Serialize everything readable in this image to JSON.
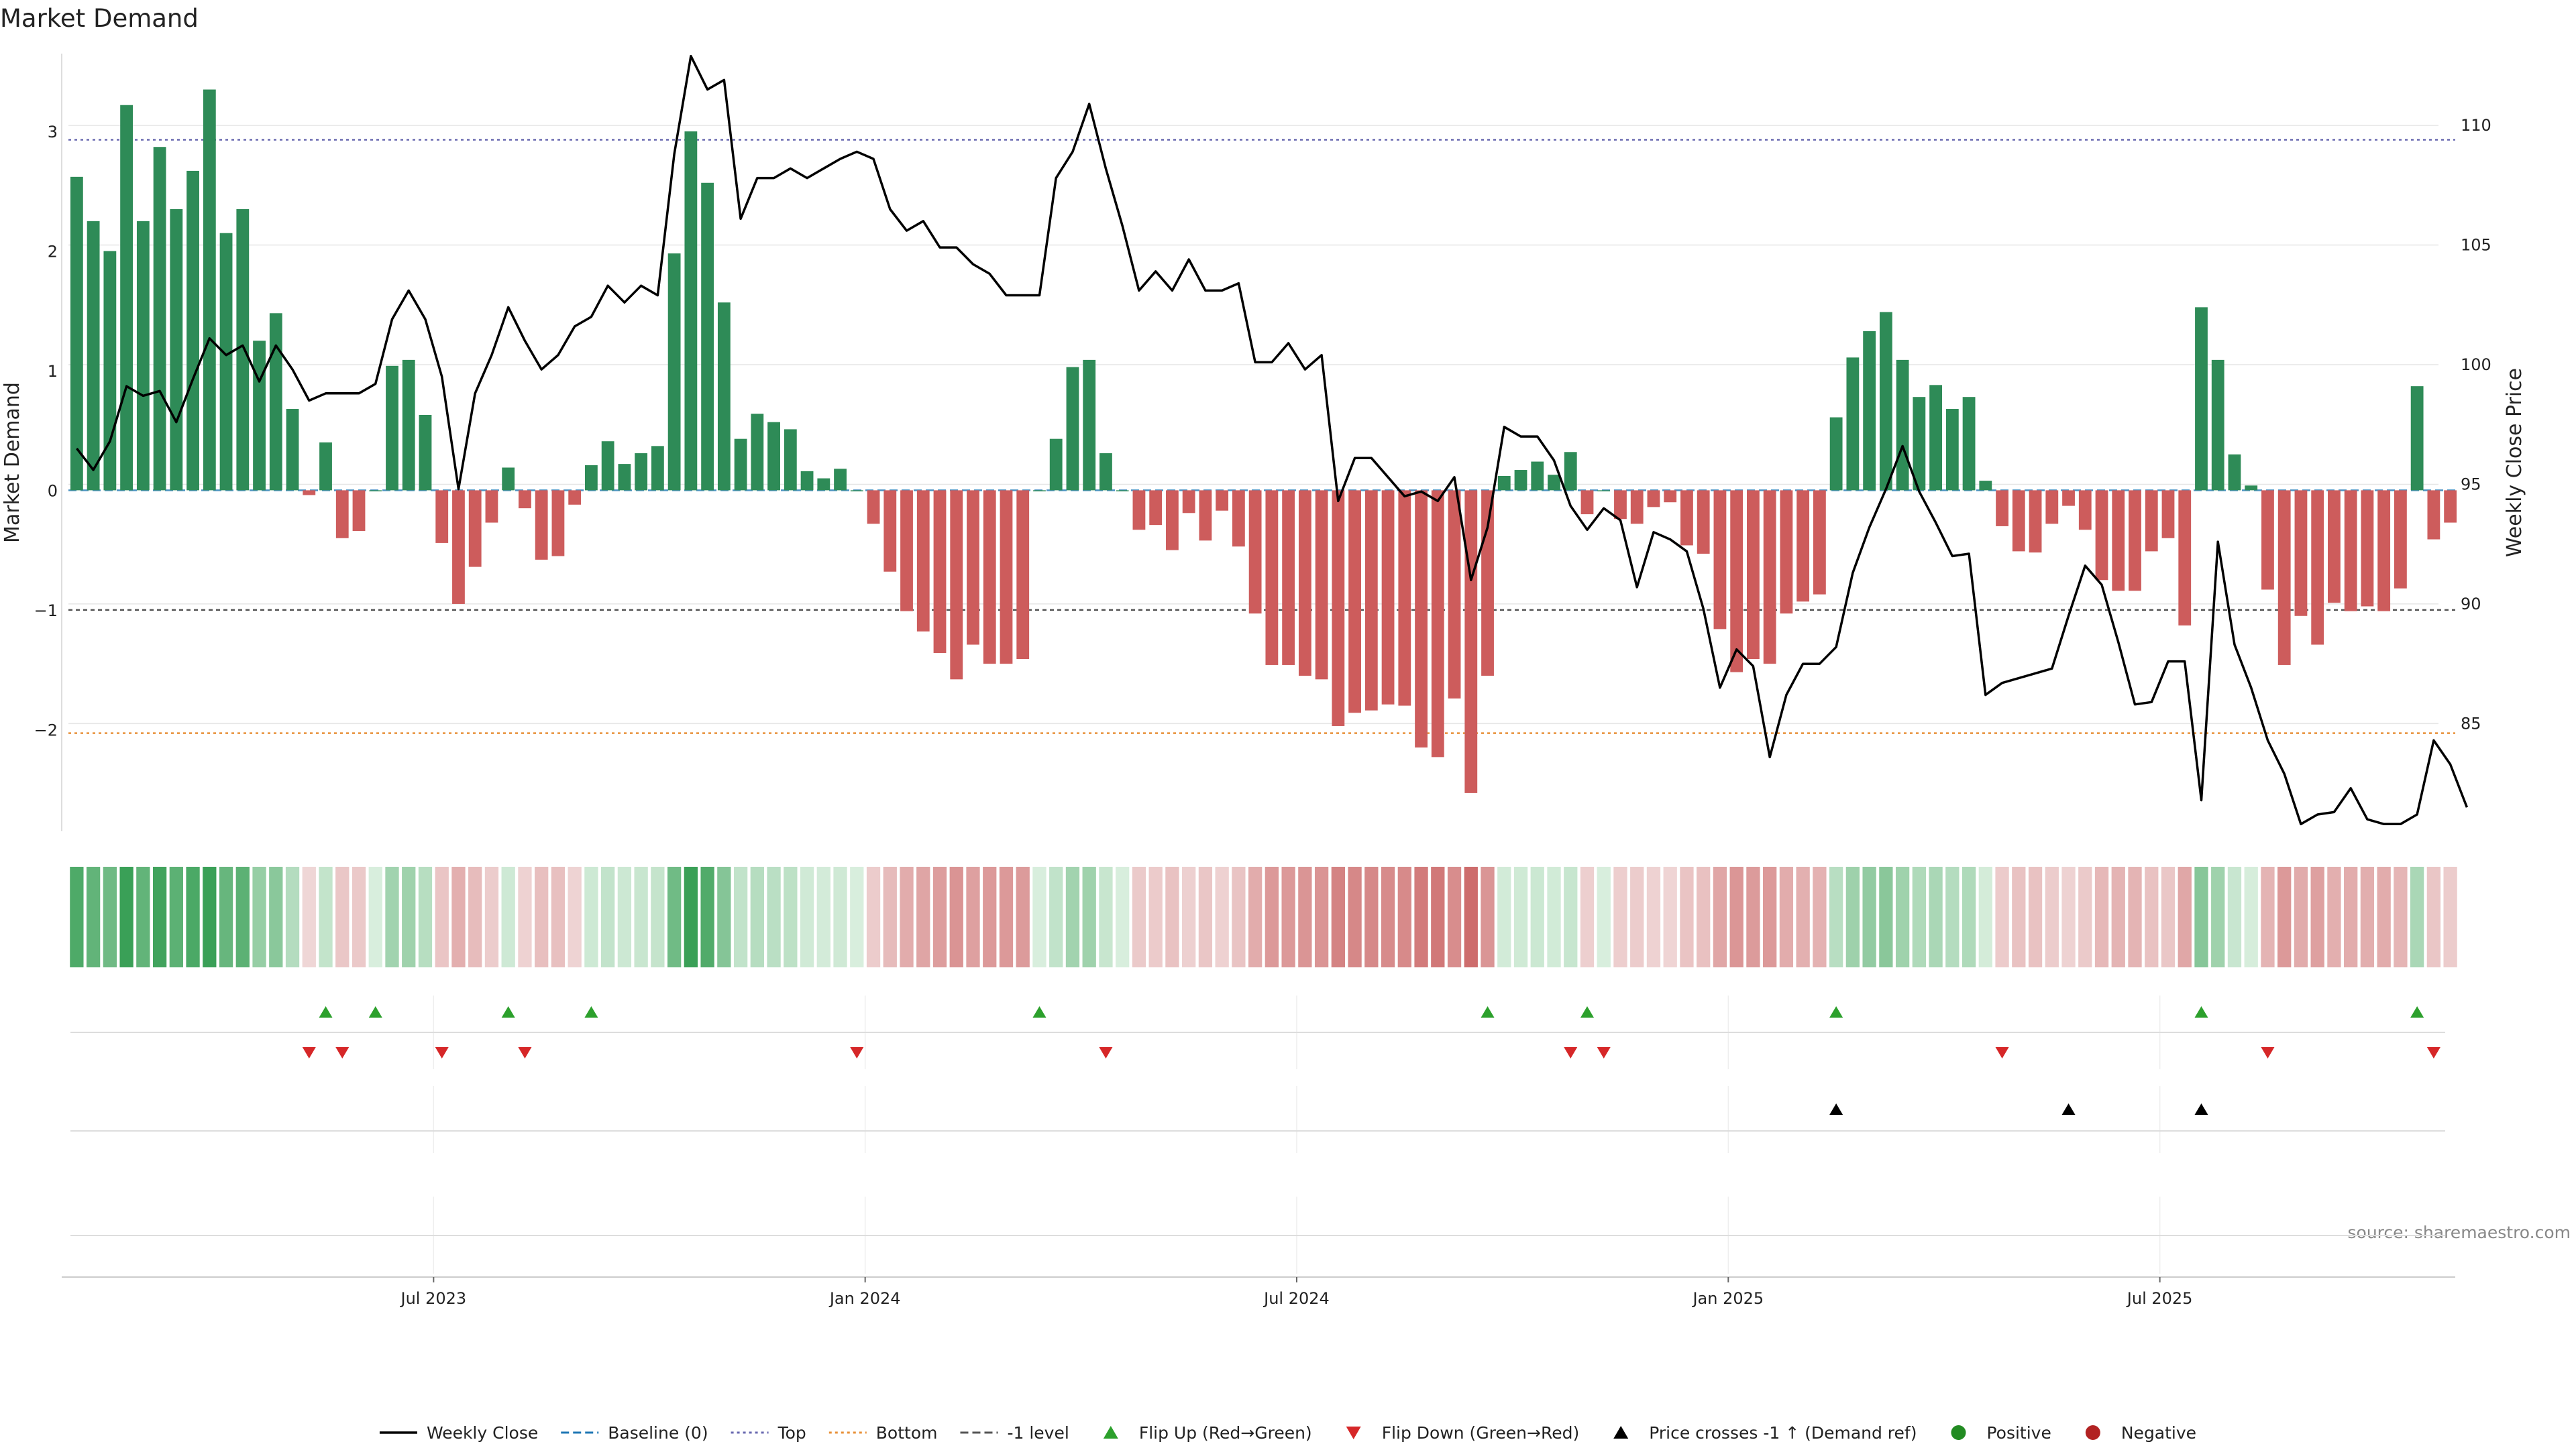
{
  "chart_data": {
    "type": "bar+line",
    "title": "Market Demand",
    "ylabel_left": "Market Demand",
    "ylabel_right": "Weekly Close Price",
    "source": "source: sharemaestro.com",
    "ylim_left": [
      -2.85,
      3.65
    ],
    "ylim_right": [
      80.5,
      113
    ],
    "yticks_left": [
      {
        "v": 3,
        "label": "3"
      },
      {
        "v": 2,
        "label": "2"
      },
      {
        "v": 1,
        "label": "1"
      },
      {
        "v": 0,
        "label": "0"
      },
      {
        "v": -1,
        "label": "−1"
      },
      {
        "v": -2,
        "label": "−2"
      }
    ],
    "yticks_right": [
      {
        "v": 110,
        "label": "110"
      },
      {
        "v": 105,
        "label": "105"
      },
      {
        "v": 100,
        "label": "100"
      },
      {
        "v": 95,
        "label": "95"
      },
      {
        "v": 90,
        "label": "90"
      },
      {
        "v": 85,
        "label": "85"
      }
    ],
    "x_ticks": [
      {
        "index": 22,
        "label": "Jul 2023"
      },
      {
        "index": 48,
        "label": "Jan 2024"
      },
      {
        "index": 74,
        "label": "Jul 2024"
      },
      {
        "index": 100,
        "label": "Jan 2025"
      },
      {
        "index": 126,
        "label": "Jul 2025"
      }
    ],
    "lines": {
      "top": 2.93,
      "bottom": -2.03,
      "minus_one": -1,
      "baseline": 0
    },
    "demand": [
      2.62,
      2.25,
      2.0,
      3.22,
      2.25,
      2.87,
      2.35,
      2.67,
      3.35,
      2.15,
      2.35,
      1.25,
      1.48,
      0.68,
      -0.04,
      0.4,
      -0.4,
      -0.34,
      0.0,
      1.04,
      1.09,
      0.63,
      -0.44,
      -0.95,
      -0.64,
      -0.27,
      0.19,
      -0.15,
      -0.58,
      -0.55,
      -0.12,
      0.21,
      0.41,
      0.22,
      0.31,
      0.37,
      1.98,
      3.0,
      2.57,
      1.57,
      0.43,
      0.64,
      0.57,
      0.51,
      0.16,
      0.1,
      0.18,
      0.0,
      -0.28,
      -0.68,
      -1.01,
      -1.18,
      -1.36,
      -1.58,
      -1.29,
      -1.45,
      -1.45,
      -1.41,
      0.0,
      0.43,
      1.03,
      1.09,
      0.31,
      0.0,
      -0.33,
      -0.29,
      -0.5,
      -0.19,
      -0.42,
      -0.17,
      -0.47,
      -1.03,
      -1.46,
      -1.46,
      -1.55,
      -1.58,
      -1.97,
      -1.86,
      -1.84,
      -1.79,
      -1.8,
      -2.15,
      -2.23,
      -1.74,
      -2.53,
      -1.55,
      0.12,
      0.17,
      0.24,
      0.13,
      0.32,
      -0.2,
      0.0,
      -0.24,
      -0.28,
      -0.14,
      -0.1,
      -0.46,
      -0.53,
      -1.16,
      -1.52,
      -1.41,
      -1.45,
      -1.03,
      -0.93,
      -0.87,
      0.61,
      1.11,
      1.33,
      1.49,
      1.09,
      0.78,
      0.88,
      0.68,
      0.78,
      0.08,
      -0.3,
      -0.51,
      -0.52,
      -0.28,
      -0.13,
      -0.33,
      -0.75,
      -0.84,
      -0.84,
      -0.51,
      -0.4,
      -1.13,
      1.53,
      1.09,
      0.3,
      0.04,
      -0.83,
      -1.46,
      -1.05,
      -1.29,
      -0.94,
      -1.01,
      -0.97,
      -1.01,
      -0.82,
      0.87,
      -0.41,
      -0.27
    ],
    "close": [
      96.5,
      95.6,
      96.8,
      99.1,
      98.7,
      98.9,
      97.6,
      99.4,
      101.1,
      100.4,
      100.8,
      99.3,
      100.8,
      99.8,
      98.5,
      98.8,
      98.8,
      98.8,
      99.2,
      101.9,
      103.1,
      101.9,
      99.5,
      94.8,
      98.8,
      100.4,
      102.4,
      101.0,
      99.8,
      100.4,
      101.6,
      102.0,
      103.3,
      102.6,
      103.3,
      102.9,
      108.8,
      112.9,
      111.5,
      111.9,
      106.1,
      107.8,
      107.8,
      108.2,
      107.8,
      108.2,
      108.6,
      108.9,
      108.6,
      106.5,
      105.6,
      106.0,
      104.9,
      104.9,
      104.2,
      103.8,
      102.9,
      102.9,
      102.9,
      107.8,
      108.9,
      110.9,
      108.2,
      105.8,
      103.1,
      103.9,
      103.1,
      104.4,
      103.1,
      103.1,
      103.4,
      100.1,
      100.1,
      100.9,
      99.8,
      100.4,
      94.3,
      96.1,
      96.1,
      95.3,
      94.5,
      94.7,
      94.3,
      95.3,
      91.0,
      93.2,
      97.4,
      97.0,
      97.0,
      96.0,
      94.1,
      93.1,
      94.0,
      93.5,
      90.7,
      93.0,
      92.7,
      92.2,
      89.8,
      86.5,
      88.1,
      87.4,
      83.6,
      86.2,
      87.5,
      87.5,
      88.2,
      91.3,
      93.2,
      94.8,
      96.6,
      94.7,
      93.4,
      92.0,
      92.1,
      86.2,
      86.7,
      86.9,
      87.1,
      87.3,
      89.5,
      91.6,
      90.8,
      88.4,
      85.8,
      85.9,
      87.6,
      87.6,
      81.8,
      92.6,
      88.3,
      86.5,
      84.3,
      82.9,
      80.8,
      81.2,
      81.3,
      82.3,
      81.0,
      80.8,
      80.8,
      81.2,
      84.3,
      83.3,
      81.5
    ],
    "flip_up_indices": [
      15,
      18,
      26,
      31,
      58,
      85,
      91,
      106,
      128,
      141
    ],
    "flip_down_indices": [
      14,
      16,
      22,
      27,
      47,
      62,
      90,
      92,
      116,
      132,
      142
    ],
    "price_cross_indices": [
      106,
      120,
      128
    ],
    "legend": [
      {
        "label": "Weekly Close",
        "kind": "line",
        "color": "#000000"
      },
      {
        "label": "Baseline (0)",
        "kind": "dashed",
        "color": "#1f77b4"
      },
      {
        "label": "Top",
        "kind": "dotted",
        "color": "#6a6ab0"
      },
      {
        "label": "Bottom",
        "kind": "dotted",
        "color": "#e8913a"
      },
      {
        "label": "-1 level",
        "kind": "dashed",
        "color": "#555555"
      },
      {
        "label": "Flip Up (Red→Green)",
        "kind": "tri-up",
        "color": "#2ca02c"
      },
      {
        "label": "Flip Down (Green→Red)",
        "kind": "tri-down",
        "color": "#d62728"
      },
      {
        "label": "Price crosses -1 ↑ (Demand ref)",
        "kind": "tri-up",
        "color": "#000000"
      },
      {
        "label": "Positive",
        "kind": "dot",
        "color": "#228b22"
      },
      {
        "label": "Negative",
        "kind": "dot",
        "color": "#b22222"
      }
    ],
    "colors": {
      "positive": "#2e8b57",
      "negative": "#cd5c5c",
      "line": "#000000",
      "flip_up": "#2ca02c",
      "flip_down": "#d62728",
      "cross": "#000000",
      "grid": "#e6e6e6"
    }
  }
}
